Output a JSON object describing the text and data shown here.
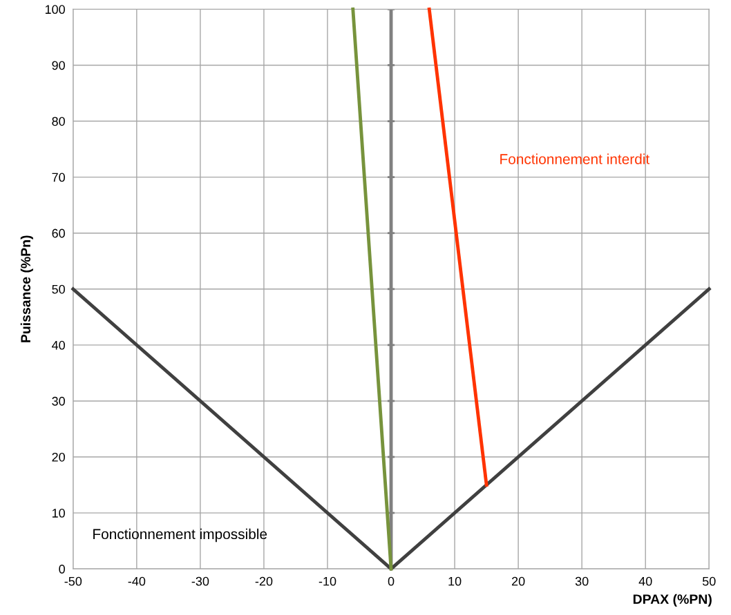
{
  "chart_data": {
    "type": "line",
    "xlabel": "DPAX (%PN)",
    "ylabel": "Puissance (%Pn)",
    "series": [
      {
        "color": "#404040",
        "x": [
          -50,
          0,
          50
        ],
        "values": [
          50,
          0,
          50
        ]
      },
      {
        "color": "#77933c",
        "x": [
          0,
          -6
        ],
        "values": [
          0,
          100
        ]
      },
      {
        "color": "#ff3300",
        "x": [
          15,
          6
        ],
        "values": [
          15,
          100
        ]
      }
    ],
    "xlim": [
      -50,
      50
    ],
    "ylim": [
      0,
      100
    ],
    "xticks": [
      -50,
      -40,
      -30,
      -20,
      -10,
      0,
      10,
      20,
      30,
      40,
      50
    ],
    "yticks": [
      0,
      10,
      20,
      30,
      40,
      50,
      60,
      70,
      80,
      90,
      100
    ],
    "ref_lines": [
      {
        "axis": "x",
        "value": 0,
        "color": "#808080"
      }
    ],
    "annotations": [
      "Fonctionnement interdit",
      "Fonctionnement impossible"
    ],
    "grid": true,
    "marker": "none",
    "line_style": "solid"
  }
}
